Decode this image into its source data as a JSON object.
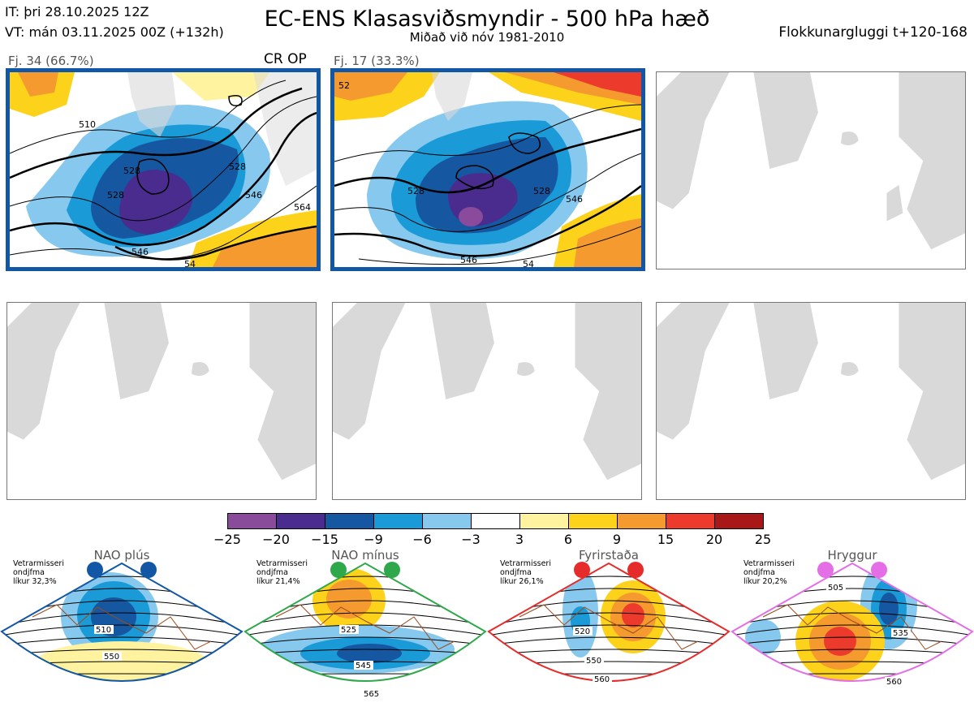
{
  "header": {
    "it": "IT: þri 28.10.2025 12Z",
    "vt": "VT: mán 03.11.2025 00Z  (+132h)",
    "title": "EC-ENS Klasasviðsmyndir - 500 hPa hæð",
    "subtitle": "Miðað við nóv 1981-2010",
    "window": "Flokkunargluggi t+120-168"
  },
  "panels": [
    {
      "label": "Fj. 34 (66.7%)",
      "tag": "CR OP",
      "contours": [
        "510",
        "528",
        "546",
        "564",
        "528",
        "528",
        "546",
        "54"
      ]
    },
    {
      "label": "Fj. 17 (33.3%)",
      "contours": [
        "528",
        "528",
        "546",
        "546",
        "54",
        "52"
      ]
    }
  ],
  "colorbar": {
    "ticks": [
      "−25",
      "−20",
      "−15",
      "−9",
      "−6",
      "−3",
      "3",
      "6",
      "9",
      "15",
      "20",
      "25"
    ],
    "colors": [
      "#8a4b9c",
      "#4a2b8e",
      "#1557a0",
      "#1a9ad6",
      "#87c9ee",
      "#ffffff",
      "#fff3a0",
      "#fdd21a",
      "#f59a2f",
      "#ec3b2d",
      "#a81818"
    ]
  },
  "regimes": [
    {
      "title": "NAO plús",
      "note": "Vetrarmisseri\nondjfma\nlíkur 32,3%",
      "color": "#1257a6",
      "contours": [
        "510",
        "550"
      ]
    },
    {
      "title": "NAO mínus",
      "note": "Vetrarmisseri\nondjfma\nlíkur 21,4%",
      "color": "#2ea84a",
      "contours": [
        "525",
        "545",
        "565"
      ]
    },
    {
      "title": "Fyrirstaða",
      "note": "Vetrarmisseri\nondjfma\nlíkur 26,1%",
      "color": "#e62b2b",
      "contours": [
        "520",
        "550",
        "560"
      ]
    },
    {
      "title": "Hryggur",
      "note": "Vetrarmisseri\nondjfma\nlíkur 20,2%",
      "color": "#e46ee6",
      "contours": [
        "505",
        "535",
        "560"
      ]
    }
  ]
}
